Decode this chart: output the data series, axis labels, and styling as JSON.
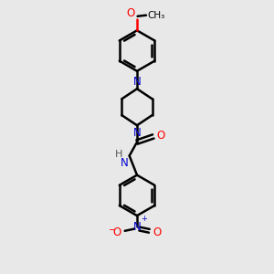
{
  "background_color": "#e8e8e8",
  "bond_color": "#000000",
  "N_color": "#0000cc",
  "O_color": "#ff0000",
  "figsize": [
    3.0,
    3.0
  ],
  "dpi": 100,
  "xlim": [
    -1.2,
    1.2
  ],
  "ylim": [
    -2.5,
    2.8
  ]
}
